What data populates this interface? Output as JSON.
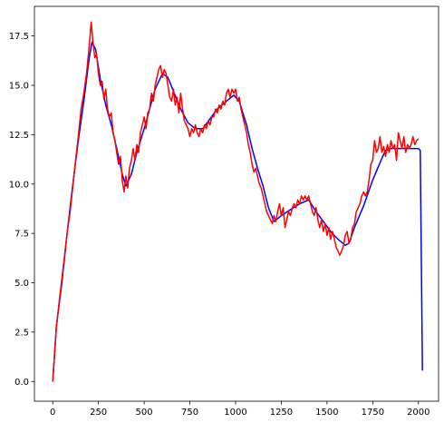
{
  "chart_data": {
    "type": "line",
    "title": "",
    "xlabel": "",
    "ylabel": "",
    "xlim": [
      -100,
      2110
    ],
    "ylim": [
      -1.0,
      19.0
    ],
    "grid": false,
    "x_ticks": [
      0,
      250,
      500,
      750,
      1000,
      1250,
      1500,
      1750,
      2000
    ],
    "y_ticks": [
      0.0,
      2.5,
      5.0,
      7.5,
      10.0,
      12.5,
      15.0,
      17.5
    ],
    "x_tick_labels": [
      "0",
      "250",
      "500",
      "750",
      "1000",
      "1250",
      "1500",
      "1750",
      "2000"
    ],
    "y_tick_labels": [
      "0.0",
      "2.5",
      "5.0",
      "7.5",
      "10.0",
      "12.5",
      "15.0",
      "17.5"
    ],
    "series": [
      {
        "color": "#0000ff",
        "points": [
          [
            0,
            0.0
          ],
          [
            20,
            2.8
          ],
          [
            50,
            5.0
          ],
          [
            80,
            7.6
          ],
          [
            110,
            10.0
          ],
          [
            140,
            12.2
          ],
          [
            170,
            14.2
          ],
          [
            200,
            16.4
          ],
          [
            215,
            17.2
          ],
          [
            235,
            16.8
          ],
          [
            260,
            15.3
          ],
          [
            290,
            14.0
          ],
          [
            320,
            13.0
          ],
          [
            350,
            11.8
          ],
          [
            380,
            10.5
          ],
          [
            400,
            9.9
          ],
          [
            430,
            10.5
          ],
          [
            460,
            11.6
          ],
          [
            500,
            12.8
          ],
          [
            530,
            13.8
          ],
          [
            560,
            14.8
          ],
          [
            600,
            15.6
          ],
          [
            630,
            15.4
          ],
          [
            660,
            14.7
          ],
          [
            700,
            13.8
          ],
          [
            740,
            13.1
          ],
          [
            780,
            12.8
          ],
          [
            820,
            12.8
          ],
          [
            860,
            13.3
          ],
          [
            900,
            13.8
          ],
          [
            950,
            14.2
          ],
          [
            990,
            14.5
          ],
          [
            1020,
            14.2
          ],
          [
            1060,
            13.0
          ],
          [
            1090,
            11.8
          ],
          [
            1120,
            10.8
          ],
          [
            1150,
            9.9
          ],
          [
            1180,
            8.8
          ],
          [
            1210,
            8.1
          ],
          [
            1250,
            8.4
          ],
          [
            1300,
            8.7
          ],
          [
            1350,
            9.0
          ],
          [
            1400,
            9.2
          ],
          [
            1440,
            8.6
          ],
          [
            1480,
            8.1
          ],
          [
            1520,
            7.6
          ],
          [
            1560,
            7.2
          ],
          [
            1600,
            6.9
          ],
          [
            1620,
            7.0
          ],
          [
            1650,
            7.8
          ],
          [
            1700,
            8.9
          ],
          [
            1750,
            10.2
          ],
          [
            1800,
            11.3
          ],
          [
            1820,
            11.7
          ],
          [
            1850,
            11.8
          ],
          [
            1900,
            11.8
          ],
          [
            1950,
            11.8
          ],
          [
            2000,
            11.8
          ],
          [
            2010,
            11.7
          ],
          [
            2022,
            0.55
          ]
        ]
      },
      {
        "color": "#ff0000",
        "points": [
          [
            0,
            0.0
          ],
          [
            20,
            2.7
          ],
          [
            35,
            4.0
          ],
          [
            50,
            5.2
          ],
          [
            65,
            6.4
          ],
          [
            80,
            7.6
          ],
          [
            95,
            8.6
          ],
          [
            110,
            9.9
          ],
          [
            125,
            11.2
          ],
          [
            140,
            12.4
          ],
          [
            155,
            13.8
          ],
          [
            170,
            14.6
          ],
          [
            185,
            15.6
          ],
          [
            200,
            17.0
          ],
          [
            210,
            18.2
          ],
          [
            220,
            17.2
          ],
          [
            230,
            16.4
          ],
          [
            240,
            16.6
          ],
          [
            250,
            15.6
          ],
          [
            260,
            15.0
          ],
          [
            270,
            15.2
          ],
          [
            280,
            14.3
          ],
          [
            290,
            14.8
          ],
          [
            300,
            13.8
          ],
          [
            310,
            13.4
          ],
          [
            320,
            13.6
          ],
          [
            330,
            12.6
          ],
          [
            340,
            12.2
          ],
          [
            350,
            11.6
          ],
          [
            360,
            11.0
          ],
          [
            370,
            11.4
          ],
          [
            380,
            10.2
          ],
          [
            390,
            9.6
          ],
          [
            400,
            10.4
          ],
          [
            410,
            9.8
          ],
          [
            420,
            10.8
          ],
          [
            430,
            11.2
          ],
          [
            440,
            11.8
          ],
          [
            450,
            11.2
          ],
          [
            460,
            12.0
          ],
          [
            470,
            11.6
          ],
          [
            480,
            12.6
          ],
          [
            490,
            13.0
          ],
          [
            500,
            13.4
          ],
          [
            510,
            12.8
          ],
          [
            520,
            13.6
          ],
          [
            530,
            13.8
          ],
          [
            540,
            14.6
          ],
          [
            550,
            14.2
          ],
          [
            560,
            15.0
          ],
          [
            570,
            15.4
          ],
          [
            580,
            15.8
          ],
          [
            590,
            16.0
          ],
          [
            600,
            15.4
          ],
          [
            610,
            15.8
          ],
          [
            620,
            15.6
          ],
          [
            630,
            15.0
          ],
          [
            640,
            14.4
          ],
          [
            650,
            14.2
          ],
          [
            660,
            14.8
          ],
          [
            670,
            14.0
          ],
          [
            680,
            14.4
          ],
          [
            690,
            13.6
          ],
          [
            700,
            14.6
          ],
          [
            710,
            13.8
          ],
          [
            720,
            13.2
          ],
          [
            730,
            13.0
          ],
          [
            740,
            12.8
          ],
          [
            750,
            12.4
          ],
          [
            760,
            12.8
          ],
          [
            770,
            12.6
          ],
          [
            780,
            13.0
          ],
          [
            790,
            12.6
          ],
          [
            800,
            12.4
          ],
          [
            810,
            12.8
          ],
          [
            820,
            12.6
          ],
          [
            830,
            13.0
          ],
          [
            840,
            12.8
          ],
          [
            850,
            13.2
          ],
          [
            860,
            13.0
          ],
          [
            870,
            13.4
          ],
          [
            880,
            13.4
          ],
          [
            890,
            13.8
          ],
          [
            900,
            13.6
          ],
          [
            910,
            14.0
          ],
          [
            920,
            13.8
          ],
          [
            930,
            14.2
          ],
          [
            940,
            14.0
          ],
          [
            950,
            14.6
          ],
          [
            960,
            14.8
          ],
          [
            970,
            14.4
          ],
          [
            980,
            14.8
          ],
          [
            990,
            14.6
          ],
          [
            1000,
            14.8
          ],
          [
            1010,
            14.2
          ],
          [
            1020,
            14.4
          ],
          [
            1030,
            13.8
          ],
          [
            1040,
            13.4
          ],
          [
            1050,
            13.0
          ],
          [
            1060,
            12.6
          ],
          [
            1070,
            12.0
          ],
          [
            1080,
            11.6
          ],
          [
            1090,
            11.0
          ],
          [
            1100,
            10.6
          ],
          [
            1110,
            10.8
          ],
          [
            1120,
            10.4
          ],
          [
            1130,
            10.0
          ],
          [
            1140,
            9.8
          ],
          [
            1150,
            9.4
          ],
          [
            1160,
            9.0
          ],
          [
            1170,
            8.6
          ],
          [
            1180,
            8.4
          ],
          [
            1190,
            8.2
          ],
          [
            1200,
            8.0
          ],
          [
            1210,
            8.4
          ],
          [
            1220,
            8.1
          ],
          [
            1230,
            8.6
          ],
          [
            1240,
            9.0
          ],
          [
            1250,
            8.4
          ],
          [
            1260,
            8.8
          ],
          [
            1270,
            7.8
          ],
          [
            1280,
            8.2
          ],
          [
            1290,
            8.6
          ],
          [
            1300,
            8.4
          ],
          [
            1310,
            8.8
          ],
          [
            1320,
            9.0
          ],
          [
            1330,
            8.8
          ],
          [
            1340,
            9.2
          ],
          [
            1350,
            9.0
          ],
          [
            1360,
            9.4
          ],
          [
            1370,
            9.2
          ],
          [
            1380,
            9.4
          ],
          [
            1390,
            9.2
          ],
          [
            1400,
            9.4
          ],
          [
            1410,
            9.0
          ],
          [
            1420,
            8.6
          ],
          [
            1430,
            8.4
          ],
          [
            1440,
            8.8
          ],
          [
            1450,
            8.2
          ],
          [
            1460,
            7.8
          ],
          [
            1470,
            8.2
          ],
          [
            1480,
            7.6
          ],
          [
            1490,
            8.0
          ],
          [
            1500,
            7.4
          ],
          [
            1510,
            7.8
          ],
          [
            1520,
            7.2
          ],
          [
            1530,
            7.6
          ],
          [
            1540,
            7.2
          ],
          [
            1550,
            6.8
          ],
          [
            1560,
            6.6
          ],
          [
            1570,
            6.4
          ],
          [
            1580,
            6.6
          ],
          [
            1590,
            6.9
          ],
          [
            1600,
            7.4
          ],
          [
            1610,
            7.6
          ],
          [
            1620,
            7.0
          ],
          [
            1630,
            7.2
          ],
          [
            1640,
            7.8
          ],
          [
            1650,
            8.0
          ],
          [
            1660,
            8.6
          ],
          [
            1670,
            8.8
          ],
          [
            1680,
            9.0
          ],
          [
            1690,
            9.4
          ],
          [
            1700,
            9.6
          ],
          [
            1710,
            9.4
          ],
          [
            1720,
            9.6
          ],
          [
            1730,
            10.2
          ],
          [
            1740,
            11.0
          ],
          [
            1750,
            11.2
          ],
          [
            1760,
            12.2
          ],
          [
            1770,
            11.6
          ],
          [
            1780,
            11.8
          ],
          [
            1790,
            12.4
          ],
          [
            1800,
            11.6
          ],
          [
            1810,
            11.9
          ],
          [
            1820,
            11.4
          ],
          [
            1830,
            12.0
          ],
          [
            1840,
            11.6
          ],
          [
            1850,
            12.2
          ],
          [
            1860,
            11.8
          ],
          [
            1870,
            12.0
          ],
          [
            1880,
            11.2
          ],
          [
            1890,
            12.6
          ],
          [
            1900,
            12.2
          ],
          [
            1910,
            11.8
          ],
          [
            1920,
            12.4
          ],
          [
            1930,
            11.6
          ],
          [
            1940,
            12.0
          ],
          [
            1950,
            11.8
          ],
          [
            1960,
            12.0
          ],
          [
            1970,
            12.4
          ],
          [
            1980,
            12.0
          ],
          [
            1990,
            12.2
          ],
          [
            2000,
            12.3
          ]
        ]
      }
    ]
  }
}
